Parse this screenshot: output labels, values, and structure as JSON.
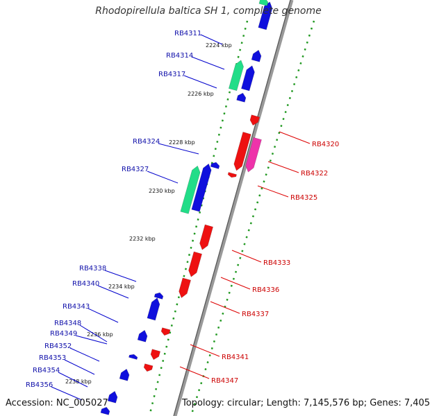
{
  "title": "Rhodopirellula baltica SH 1, complete genome",
  "footer": {
    "accession": "Accession: NC_005027",
    "summary": "Topology: circular; Length: 7,145,576 bp; Genes: 7,405"
  },
  "colors": {
    "forward_cds": "#1010dd",
    "reverse_cds": "#ee1111",
    "rna_forward": "#22dd88",
    "rna_reverse": "#ee33aa",
    "backbone": "#999999",
    "ticks": "#228822",
    "forward_label": "#1010aa",
    "reverse_label": "#cc0000"
  },
  "ruler_labels": [
    "2224 kbp",
    "2226 kbp",
    "2228 kbp",
    "2230 kbp",
    "2232 kbp",
    "2234 kbp",
    "2236 kbp",
    "2238 kbp"
  ],
  "forward_labels": [
    "RB4311",
    "RB4314",
    "RB4317",
    "RB4324",
    "RB4327",
    "RB4338",
    "RB4340",
    "RB4343",
    "RB4348",
    "RB4349",
    "RB4352",
    "RB4353",
    "RB4354",
    "RB4356"
  ],
  "reverse_labels": [
    "RB4320",
    "RB4322",
    "RB4325",
    "RB4333",
    "RB4336",
    "RB4337",
    "RB4341",
    "RB4347"
  ]
}
